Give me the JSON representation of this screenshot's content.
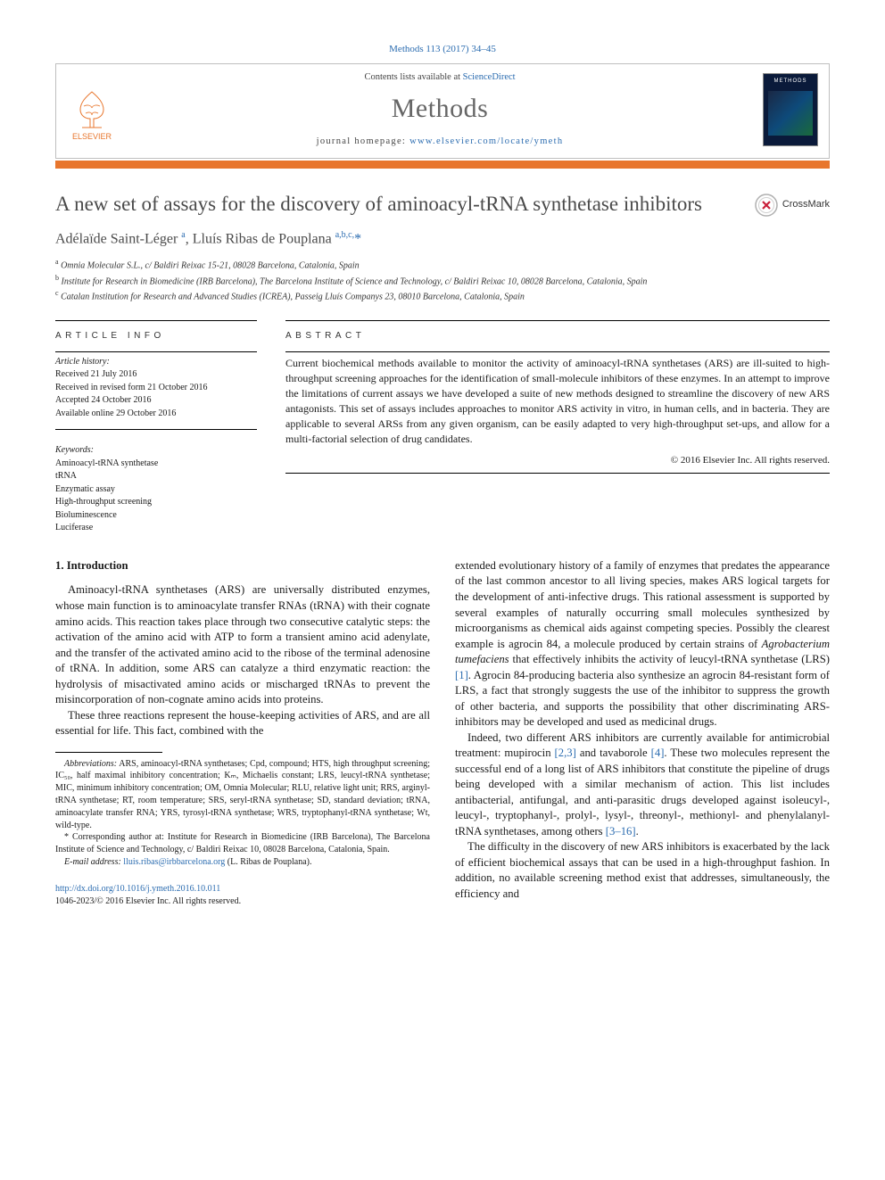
{
  "header": {
    "citation": "Methods 113 (2017) 34–45",
    "contents_prefix": "Contents lists available at ",
    "contents_link": "ScienceDirect",
    "journal": "Methods",
    "homepage_prefix": "journal homepage: ",
    "homepage_url": "www.elsevier.com/locate/ymeth",
    "publisher": "ELSEVIER",
    "cover_label": "METHODS",
    "colors": {
      "accent": "#e8762d",
      "link": "#2b6cb0",
      "title_gray": "#4a4a4a",
      "journal_gray": "#666666"
    }
  },
  "crossmark": {
    "label": "CrossMark"
  },
  "article": {
    "title": "A new set of assays for the discovery of aminoacyl-tRNA synthetase inhibitors",
    "authors_html": "Adélaïde Saint-Léger <sup>a</sup>, Lluís Ribas de Pouplana <sup>a,b,c,</sup><span class='star'>*</span>",
    "affiliations": [
      "Omnia Molecular S.L., c/ Baldiri Reixac 15-21, 08028 Barcelona, Catalonia, Spain",
      "Institute for Research in Biomedicine (IRB Barcelona), The Barcelona Institute of Science and Technology, c/ Baldiri Reixac 10, 08028 Barcelona, Catalonia, Spain",
      "Catalan Institution for Research and Advanced Studies (ICREA), Passeig Lluís Companys 23, 08010 Barcelona, Catalonia, Spain"
    ],
    "aff_markers": [
      "a",
      "b",
      "c"
    ]
  },
  "info": {
    "heading": "ARTICLE INFO",
    "history_label": "Article history:",
    "history": [
      "Received 21 July 2016",
      "Received in revised form 21 October 2016",
      "Accepted 24 October 2016",
      "Available online 29 October 2016"
    ],
    "keywords_label": "Keywords:",
    "keywords": [
      "Aminoacyl-tRNA synthetase",
      "tRNA",
      "Enzymatic assay",
      "High-throughput screening",
      "Bioluminescence",
      "Luciferase"
    ]
  },
  "abstract": {
    "heading": "ABSTRACT",
    "text": "Current biochemical methods available to monitor the activity of aminoacyl-tRNA synthetases (ARS) are ill-suited to high-throughput screening approaches for the identification of small-molecule inhibitors of these enzymes. In an attempt to improve the limitations of current assays we have developed a suite of new methods designed to streamline the discovery of new ARS antagonists. This set of assays includes approaches to monitor ARS activity in vitro, in human cells, and in bacteria. They are applicable to several ARSs from any given organism, can be easily adapted to very high-throughput set-ups, and allow for a multi-factorial selection of drug candidates.",
    "copyright": "© 2016 Elsevier Inc. All rights reserved."
  },
  "body": {
    "section_number": "1.",
    "section_title": "Introduction",
    "left_paras": [
      "Aminoacyl-tRNA synthetases (ARS) are universally distributed enzymes, whose main function is to aminoacylate transfer RNAs (tRNA) with their cognate amino acids. This reaction takes place through two consecutive catalytic steps: the activation of the amino acid with ATP to form a transient amino acid adenylate, and the transfer of the activated amino acid to the ribose of the terminal adenosine of tRNA. In addition, some ARS can catalyze a third enzymatic reaction: the hydrolysis of misactivated amino acids or mischarged tRNAs to prevent the misincorporation of non-cognate amino acids into proteins.",
      "These three reactions represent the house-keeping activities of ARS, and are all essential for life. This fact, combined with the"
    ],
    "right_paras": [
      "extended evolutionary history of a family of enzymes that predates the appearance of the last common ancestor to all living species, makes ARS logical targets for the development of anti-infective drugs. This rational assessment is supported by several examples of naturally occurring small molecules synthesized by microorganisms as chemical aids against competing species. Possibly the clearest example is agrocin 84, a molecule produced by certain strains of <em class='species'>Agrobacterium tumefaciens</em> that effectively inhibits the activity of leucyl-tRNA synthetase (LRS) <span class='ref-link'>[1]</span>. Agrocin 84-producing bacteria also synthesize an agrocin 84-resistant form of LRS, a fact that strongly suggests the use of the inhibitor to suppress the growth of other bacteria, and supports the possibility that other discriminating ARS-inhibitors may be developed and used as medicinal drugs.",
      "Indeed, two different ARS inhibitors are currently available for antimicrobial treatment: mupirocin <span class='ref-link'>[2,3]</span> and tavaborole <span class='ref-link'>[4]</span>. These two molecules represent the successful end of a long list of ARS inhibitors that constitute the pipeline of drugs being developed with a similar mechanism of action. This list includes antibacterial, antifungal, and anti-parasitic drugs developed against isoleucyl-, leucyl-, tryptophanyl-, prolyl-, lysyl-, threonyl-, methionyl- and phenylalanyl-tRNA synthetases, among others <span class='ref-link'>[3–16]</span>.",
      "The difficulty in the discovery of new ARS inhibitors is exacerbated by the lack of efficient biochemical assays that can be used in a high-throughput fashion. In addition, no available screening method exist that addresses, simultaneously, the efficiency and"
    ]
  },
  "footnotes": {
    "abbrev_label": "Abbreviations:",
    "abbrev_text": " ARS, aminoacyl-tRNA synthetases; Cpd, compound; HTS, high throughput screening; IC₅₀, half maximal inhibitory concentration; Kₘ, Michaelis constant; LRS, leucyl-tRNA synthetase; MIC, minimum inhibitory concentration; OM, Omnia Molecular; RLU, relative light unit; RRS, arginyl-tRNA synthetase; RT, room temperature; SRS, seryl-tRNA synthetase; SD, standard deviation; tRNA, aminoacylate transfer RNA; YRS, tyrosyl-tRNA synthetase; WRS, tryptophanyl-tRNA synthetase; Wt, wild-type.",
    "corr_marker": "*",
    "corr_text": " Corresponding author at: Institute for Research in Biomedicine (IRB Barcelona), The Barcelona Institute of Science and Technology, c/ Baldiri Reixac 10, 08028 Barcelona, Catalonia, Spain.",
    "email_label": "E-mail address:",
    "email": "lluis.ribas@irbbarcelona.org",
    "email_who": " (L. Ribas de Pouplana)."
  },
  "footer": {
    "doi": "http://dx.doi.org/10.1016/j.ymeth.2016.10.011",
    "issn_line": "1046-2023/© 2016 Elsevier Inc. All rights reserved."
  }
}
